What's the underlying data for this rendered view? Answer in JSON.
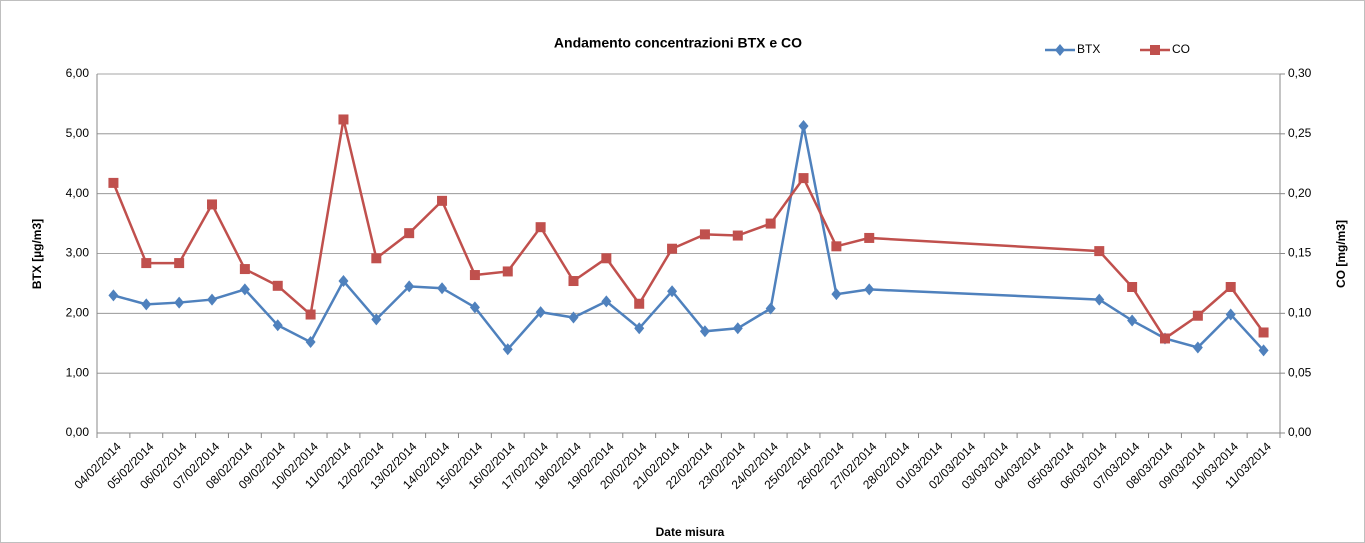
{
  "chart_data": {
    "type": "line",
    "title": "Andamento concentrazioni BTX e CO",
    "x_label": "Date misura",
    "y_label": "BTX [µg/m3]",
    "y2_label": "CO [mg/m3]",
    "legend": "top-right",
    "grid": true,
    "xlim": [
      "04/02/2014",
      "11/03/2014"
    ],
    "xticks": [
      "04/02/2014",
      "05/02/2014",
      "06/02/2014",
      "07/02/2014",
      "08/02/2014",
      "09/02/2014",
      "10/02/2014",
      "11/02/2014",
      "12/02/2014",
      "13/02/2014",
      "14/02/2014",
      "15/02/2014",
      "16/02/2014",
      "17/02/2014",
      "18/02/2014",
      "19/02/2014",
      "20/02/2014",
      "21/02/2014",
      "22/02/2014",
      "23/02/2014",
      "24/02/2014",
      "25/02/2014",
      "26/02/2014",
      "27/02/2014",
      "28/02/2014",
      "01/03/2014",
      "02/03/2014",
      "03/03/2014",
      "04/03/2014",
      "05/03/2014",
      "06/03/2014",
      "07/03/2014",
      "08/03/2014",
      "09/03/2014",
      "10/03/2014",
      "11/03/2014"
    ],
    "x": [
      "04/02/2014",
      "05/02/2014",
      "06/02/2014",
      "07/02/2014",
      "08/02/2014",
      "09/02/2014",
      "10/02/2014",
      "11/02/2014",
      "12/02/2014",
      "13/02/2014",
      "14/02/2014",
      "15/02/2014",
      "16/02/2014",
      "17/02/2014",
      "18/02/2014",
      "19/02/2014",
      "20/02/2014",
      "21/02/2014",
      "22/02/2014",
      "23/02/2014",
      "24/02/2014",
      "25/02/2014",
      "26/02/2014",
      "27/02/2014",
      "06/03/2014",
      "07/03/2014",
      "08/03/2014",
      "09/03/2014",
      "10/03/2014",
      "11/03/2014"
    ],
    "ylim": [
      0,
      6
    ],
    "yticks": [
      {
        "value": 0,
        "label": "0,00"
      },
      {
        "value": 1,
        "label": "1,00"
      },
      {
        "value": 2,
        "label": "2,00"
      },
      {
        "value": 3,
        "label": "3,00"
      },
      {
        "value": 4,
        "label": "4,00"
      },
      {
        "value": 5,
        "label": "5,00"
      },
      {
        "value": 6,
        "label": "6,00"
      }
    ],
    "y2lim": [
      0,
      0.3
    ],
    "y2ticks": [
      {
        "value": 0,
        "label": "0,00"
      },
      {
        "value": 0.05,
        "label": "0,05"
      },
      {
        "value": 0.1,
        "label": "0,10"
      },
      {
        "value": 0.15,
        "label": "0,15"
      },
      {
        "value": 0.2,
        "label": "0,20"
      },
      {
        "value": 0.25,
        "label": "0,25"
      },
      {
        "value": 0.3,
        "label": "0,30"
      }
    ],
    "series": [
      {
        "name": "BTX",
        "color": "#4f81bd",
        "marker": "diamond",
        "values": [
          2.3,
          2.15,
          2.18,
          2.23,
          2.4,
          1.8,
          1.52,
          2.54,
          1.9,
          2.45,
          2.42,
          2.1,
          1.4,
          2.02,
          1.93,
          2.2,
          1.75,
          2.37,
          1.7,
          1.75,
          2.08,
          5.13,
          2.32,
          2.4,
          2.23,
          1.88,
          1.58,
          1.43,
          1.98,
          1.38
        ]
      },
      {
        "name": "CO",
        "color": "#c0504d",
        "marker": "square",
        "axis": "y2",
        "values": [
          0.209,
          0.142,
          0.142,
          0.191,
          0.137,
          0.123,
          0.099,
          0.262,
          0.146,
          0.167,
          0.194,
          0.132,
          0.135,
          0.172,
          0.127,
          0.146,
          0.108,
          0.154,
          0.166,
          0.165,
          0.175,
          0.213,
          0.156,
          0.163,
          0.152,
          0.122,
          0.079,
          0.098,
          0.122,
          0.084
        ]
      }
    ]
  }
}
